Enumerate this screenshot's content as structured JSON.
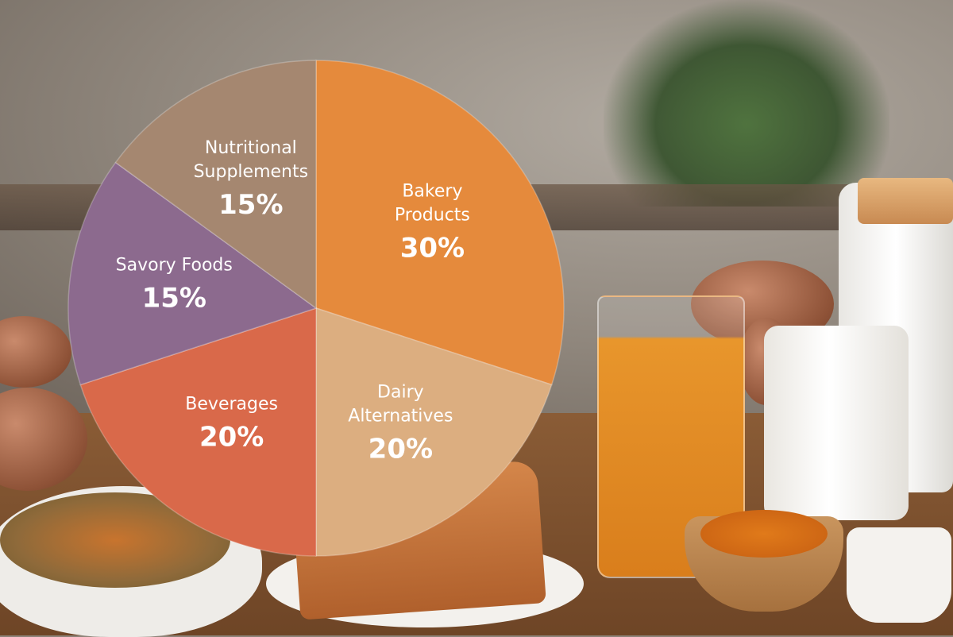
{
  "chart_data": {
    "type": "pie",
    "title": "",
    "slices": [
      {
        "name_lines": [
          "Bakery",
          "Products"
        ],
        "value": 30,
        "label": "30%",
        "color": "#e58a3c"
      },
      {
        "name_lines": [
          "Dairy",
          "Alternatives"
        ],
        "value": 20,
        "label": "20%",
        "color": "#dcae80"
      },
      {
        "name_lines": [
          "Beverages"
        ],
        "value": 20,
        "label": "20%",
        "color": "#d9694a"
      },
      {
        "name_lines": [
          "Savory Foods"
        ],
        "value": 15,
        "label": "15%",
        "color": "#8c6a8e"
      },
      {
        "name_lines": [
          "Nutritional",
          "Supplements"
        ],
        "value": 15,
        "label": "15%",
        "color": "#a58770"
      }
    ],
    "legend": "none",
    "labels": "inside"
  }
}
